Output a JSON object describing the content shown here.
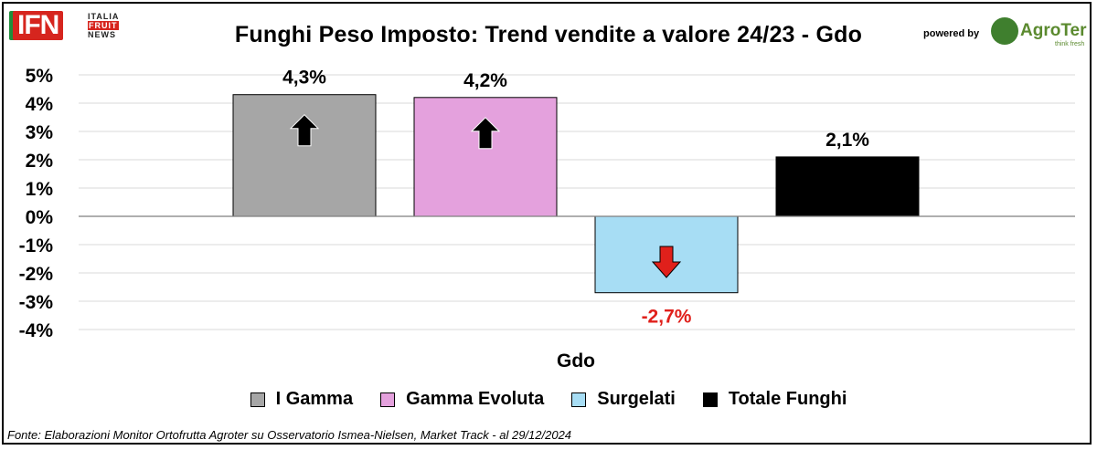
{
  "header": {
    "title": "Funghi Peso Imposto: Trend vendite a valore 24/23 - Gdo",
    "logo_left_text": "IFN",
    "logo_left_sub": [
      "ITALIA",
      "FRUIT",
      "NEWS"
    ],
    "powered_by": "powered by",
    "logo_right_text": "AgroTer",
    "logo_right_tagline": "think fresh"
  },
  "chart_data": {
    "type": "bar",
    "categories": [
      "Gdo"
    ],
    "xlabel": "Gdo",
    "ylabel": "",
    "ylim": [
      -4,
      5
    ],
    "yticks": [
      "5%",
      "4%",
      "3%",
      "2%",
      "1%",
      "0%",
      "-1%",
      "-2%",
      "-3%",
      "-4%"
    ],
    "grid": true,
    "legend_position": "bottom",
    "series": [
      {
        "name": "I Gamma",
        "values": [
          4.3
        ],
        "label": "4,3%",
        "color": "#a6a6a6",
        "label_color": "#000000",
        "arrow": "up"
      },
      {
        "name": "Gamma Evoluta",
        "values": [
          4.2
        ],
        "label": "4,2%",
        "color": "#e4a1dd",
        "label_color": "#000000",
        "arrow": "up"
      },
      {
        "name": "Surgelati",
        "values": [
          -2.7
        ],
        "label": "-2,7%",
        "color": "#a7ddf4",
        "label_color": "#e0201b",
        "arrow": "down"
      },
      {
        "name": "Totale Funghi",
        "values": [
          2.1
        ],
        "label": "2,1%",
        "color": "#000000",
        "label_color": "#000000",
        "arrow": "none"
      }
    ]
  },
  "footer": {
    "source": "Fonte: Elaborazioni Monitor Ortofrutta Agroter su Osservatorio Ismea-Nielsen, Market Track - al 29/12/2024"
  }
}
